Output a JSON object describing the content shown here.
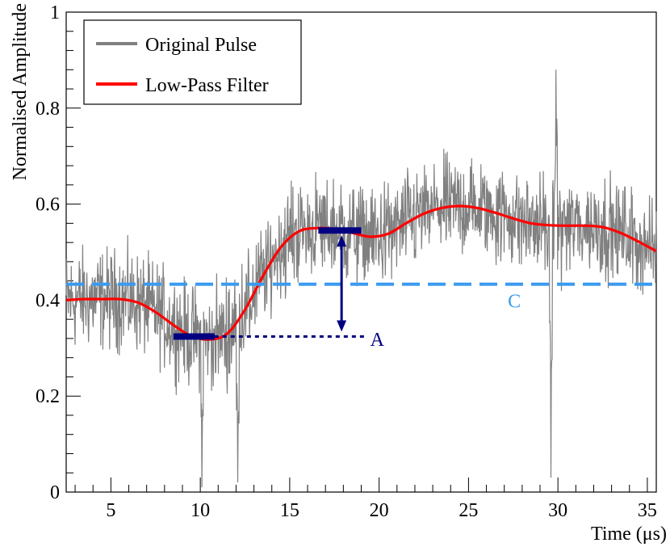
{
  "chart_data": {
    "type": "line",
    "xlabel": "Time (μs)",
    "ylabel": "Normalised Amplitude",
    "xlim": [
      2.5,
      35.5
    ],
    "ylim": [
      0,
      1
    ],
    "x_ticks": [
      5,
      10,
      15,
      20,
      25,
      30,
      35
    ],
    "y_ticks": [
      0,
      0.2,
      0.4,
      0.6,
      0.8,
      1
    ],
    "grid": false,
    "legend_position": "top-left",
    "series": [
      {
        "name": "Original Pulse",
        "color": "#808080",
        "kind": "noisy-trace",
        "noise_amplitude": 0.07,
        "spikes": [
          {
            "x": 10.1,
            "y": 0.01
          },
          {
            "x": 12.1,
            "y": 0.02
          },
          {
            "x": 29.6,
            "y": 0.03
          },
          {
            "x": 29.9,
            "y": 0.88
          }
        ]
      },
      {
        "name": "Low-Pass Filter",
        "color": "#ff0000",
        "kind": "smooth",
        "points": [
          [
            2.5,
            0.4
          ],
          [
            3.5,
            0.402
          ],
          [
            4.5,
            0.402
          ],
          [
            5.5,
            0.402
          ],
          [
            6.5,
            0.395
          ],
          [
            7.5,
            0.375
          ],
          [
            8.5,
            0.348
          ],
          [
            9.5,
            0.325
          ],
          [
            10.5,
            0.318
          ],
          [
            11.5,
            0.33
          ],
          [
            12.5,
            0.38
          ],
          [
            13.5,
            0.45
          ],
          [
            14.5,
            0.51
          ],
          [
            15.5,
            0.543
          ],
          [
            16.5,
            0.55
          ],
          [
            17.5,
            0.548
          ],
          [
            18.5,
            0.54
          ],
          [
            19.5,
            0.532
          ],
          [
            20.5,
            0.538
          ],
          [
            21.5,
            0.56
          ],
          [
            22.5,
            0.58
          ],
          [
            23.5,
            0.592
          ],
          [
            24.5,
            0.596
          ],
          [
            25.5,
            0.592
          ],
          [
            26.5,
            0.582
          ],
          [
            27.5,
            0.57
          ],
          [
            28.5,
            0.56
          ],
          [
            29.5,
            0.556
          ],
          [
            30.5,
            0.555
          ],
          [
            31.5,
            0.555
          ],
          [
            32.5,
            0.552
          ],
          [
            33.5,
            0.54
          ],
          [
            34.5,
            0.522
          ],
          [
            35.5,
            0.502
          ]
        ]
      }
    ],
    "annotations": {
      "baseline_C": {
        "label": "C",
        "y": 0.433,
        "color": "#3b9bf0",
        "label_x": 27.2,
        "label_y": 0.385
      },
      "amplitude_A": {
        "label": "A",
        "color": "#000080",
        "low_marker": {
          "x0": 8.5,
          "x1": 10.8,
          "y": 0.324
        },
        "high_marker": {
          "x0": 16.6,
          "x1": 19.0,
          "y": 0.545
        },
        "dotted_line": {
          "x0": 10.8,
          "x1": 19.2,
          "y": 0.324
        },
        "arrow_x": 17.9,
        "label_x": 19.5,
        "label_y": 0.305
      }
    }
  }
}
